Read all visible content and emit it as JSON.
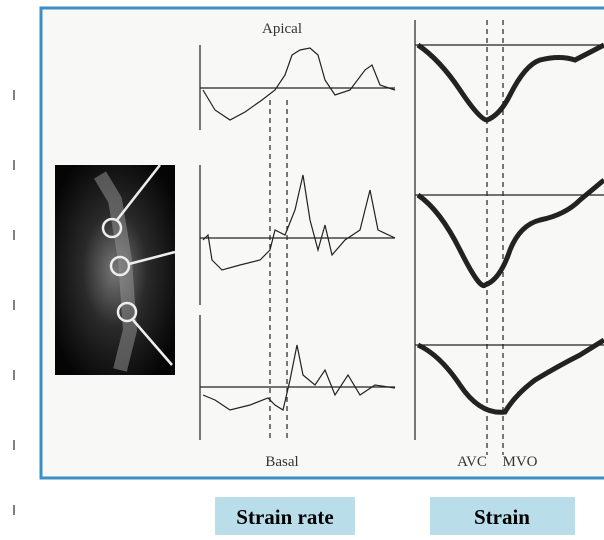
{
  "figure": {
    "labels": {
      "top": "Apical",
      "bottom": "Basal",
      "avc": "AVC",
      "mvo": "MVO"
    },
    "captions": [
      "Strain rate",
      "Strain"
    ]
  }
}
